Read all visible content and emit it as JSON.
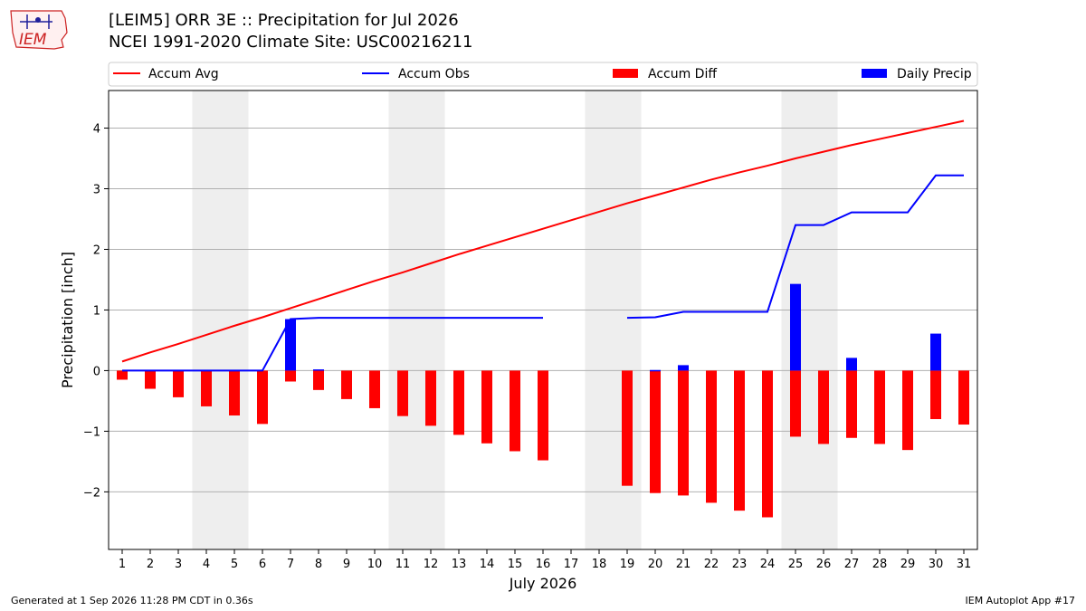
{
  "header": {
    "title_line1": "[LEIM5] ORR 3E :: Precipitation for Jul 2026",
    "title_line2": "NCEI 1991-2020 Climate Site: USC00216211",
    "logo_text": "IEM"
  },
  "footer": {
    "generated": "Generated at 1 Sep 2026 11:28 PM CDT in 0.36s",
    "app": "IEM Autoplot App #17"
  },
  "colors": {
    "avg": "#ff0000",
    "obs": "#0000ff",
    "diff": "#ff0000",
    "daily": "#0000ff",
    "weekend_shade": "#eeeeee",
    "grid": "#b0b0b0"
  },
  "chart_data": {
    "type": "bar",
    "xlabel": "July 2026",
    "ylabel": "Precipitation [inch]",
    "ylim": [
      -2.95,
      4.62
    ],
    "yticks": [
      -2,
      -1,
      0,
      1,
      2,
      3,
      4
    ],
    "ytick_labels": [
      "−2",
      "−1",
      "0",
      "1",
      "2",
      "3",
      "4"
    ],
    "x": [
      1,
      2,
      3,
      4,
      5,
      6,
      7,
      8,
      9,
      10,
      11,
      12,
      13,
      14,
      15,
      16,
      17,
      18,
      19,
      20,
      21,
      22,
      23,
      24,
      25,
      26,
      27,
      28,
      29,
      30,
      31
    ],
    "grid": "horizontal",
    "legend_position": "top",
    "legend": [
      "Accum Avg",
      "Accum Obs",
      "Accum Diff",
      "Daily Precip"
    ],
    "shaded_days": [
      [
        4,
        5
      ],
      [
        11,
        12
      ],
      [
        18,
        19
      ],
      [
        25,
        26
      ]
    ],
    "series": [
      {
        "name": "Accum Avg",
        "type": "line",
        "values": [
          0.15,
          0.3,
          0.44,
          0.59,
          0.74,
          0.88,
          1.03,
          1.18,
          1.33,
          1.48,
          1.62,
          1.77,
          1.92,
          2.06,
          2.2,
          2.34,
          2.48,
          2.62,
          2.76,
          2.89,
          3.02,
          3.15,
          3.27,
          3.38,
          3.5,
          3.61,
          3.72,
          3.82,
          3.92,
          4.02,
          4.12
        ]
      },
      {
        "name": "Accum Obs",
        "type": "line",
        "values": [
          0.0,
          0.0,
          0.0,
          0.0,
          0.0,
          0.0,
          0.85,
          0.87,
          0.87,
          0.87,
          0.87,
          0.87,
          0.87,
          0.87,
          0.87,
          0.87,
          null,
          null,
          0.87,
          0.88,
          0.97,
          0.97,
          0.97,
          0.97,
          2.4,
          2.4,
          2.61,
          2.61,
          2.61,
          3.22,
          3.22
        ]
      },
      {
        "name": "Accum Diff",
        "type": "bar",
        "values": [
          -0.15,
          -0.3,
          -0.44,
          -0.59,
          -0.74,
          -0.88,
          -0.18,
          -0.32,
          -0.47,
          -0.62,
          -0.75,
          -0.91,
          -1.06,
          -1.2,
          -1.33,
          -1.48,
          null,
          null,
          -1.9,
          -2.02,
          -2.06,
          -2.18,
          -2.31,
          -2.42,
          -1.09,
          -1.21,
          -1.11,
          -1.21,
          -1.31,
          -0.8,
          -0.89
        ]
      },
      {
        "name": "Daily Precip",
        "type": "bar",
        "values": [
          0,
          0,
          0,
          0,
          0,
          0,
          0.85,
          0.02,
          0,
          0,
          0,
          0,
          0,
          0,
          0,
          0,
          null,
          null,
          0,
          0.01,
          0.09,
          0,
          0,
          0,
          1.43,
          0,
          0.21,
          0,
          0,
          0.61,
          0
        ]
      }
    ]
  }
}
